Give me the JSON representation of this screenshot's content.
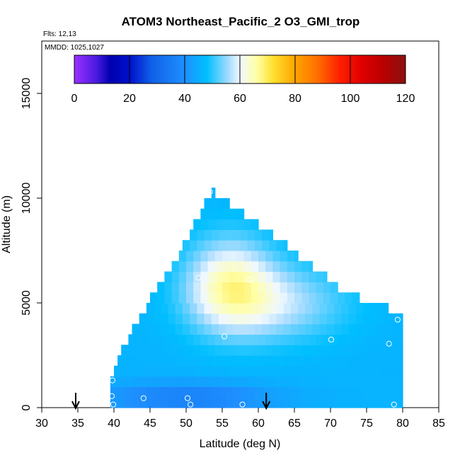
{
  "chart_data": {
    "type": "heatmap",
    "title": "ATOM3 Northeast_Pacific_2 O3_GMI_trop",
    "flts_label": "Flts: 12,13",
    "mmdd_label": "MMDD: 1025,1027",
    "xlabel": "Latitude (deg N)",
    "ylabel": "Altitude (m)",
    "xlim": [
      30,
      85
    ],
    "ylim": [
      0,
      17500
    ],
    "x_ticks": [
      30,
      35,
      40,
      45,
      50,
      55,
      60,
      65,
      70,
      75,
      80,
      85
    ],
    "y_ticks": [
      0,
      5000,
      10000,
      15000
    ],
    "colorbar": {
      "min": 0,
      "max": 120,
      "ticks": [
        0,
        20,
        40,
        60,
        80,
        100,
        120
      ],
      "stops": [
        {
          "v": 0,
          "c": "#9b30ff"
        },
        {
          "v": 8,
          "c": "#4a1ae0"
        },
        {
          "v": 13,
          "c": "#0000b0"
        },
        {
          "v": 20,
          "c": "#0010c8"
        },
        {
          "v": 28,
          "c": "#1060e8"
        },
        {
          "v": 40,
          "c": "#1e90ff"
        },
        {
          "v": 48,
          "c": "#00bfff"
        },
        {
          "v": 56,
          "c": "#a8dcff"
        },
        {
          "v": 60,
          "c": "#f0f8ff"
        },
        {
          "v": 66,
          "c": "#ffffa8"
        },
        {
          "v": 72,
          "c": "#ffe030"
        },
        {
          "v": 80,
          "c": "#ffa500"
        },
        {
          "v": 88,
          "c": "#ff7000"
        },
        {
          "v": 96,
          "c": "#ff2000"
        },
        {
          "v": 104,
          "c": "#e00000"
        },
        {
          "v": 112,
          "c": "#b80000"
        },
        {
          "v": 120,
          "c": "#8b1010"
        }
      ]
    },
    "field_region": {
      "lat_range": [
        39.5,
        80
      ],
      "alt_range": [
        0,
        10400
      ],
      "boundary_left": [
        [
          39.5,
          0
        ],
        [
          39.5,
          1400
        ],
        [
          42.5,
          3800
        ],
        [
          48.5,
          7000
        ],
        [
          53.5,
          10400
        ]
      ],
      "boundary_right": [
        [
          53.5,
          10400
        ],
        [
          63,
          8000
        ],
        [
          72,
          5500
        ],
        [
          80,
          4500
        ],
        [
          80,
          0
        ]
      ],
      "alt_step": 500,
      "lat_step": 1,
      "centers": [
        {
          "lat": 56,
          "alt": 6000,
          "value": 62,
          "r_lat": 6,
          "r_alt": 2200
        },
        {
          "lat": 62,
          "alt": 5000,
          "value": 57,
          "r_lat": 10,
          "r_alt": 1800
        },
        {
          "lat": 50,
          "alt": 500,
          "value": 36,
          "r_lat": 12,
          "r_alt": 700
        }
      ],
      "background_value": 46
    },
    "flight_points": [
      {
        "lat": 53.3,
        "alt": 10300
      },
      {
        "lat": 51.7,
        "alt": 6200
      },
      {
        "lat": 58.8,
        "alt": 6100
      },
      {
        "lat": 55.3,
        "alt": 3400
      },
      {
        "lat": 70.1,
        "alt": 3250
      },
      {
        "lat": 78.1,
        "alt": 3050
      },
      {
        "lat": 79.3,
        "alt": 4200
      },
      {
        "lat": 39.8,
        "alt": 1300
      },
      {
        "lat": 39.7,
        "alt": 550
      },
      {
        "lat": 39.9,
        "alt": 150
      },
      {
        "lat": 44.1,
        "alt": 450
      },
      {
        "lat": 50.2,
        "alt": 450
      },
      {
        "lat": 50.6,
        "alt": 150
      },
      {
        "lat": 57.8,
        "alt": 150
      },
      {
        "lat": 78.8,
        "alt": 150
      }
    ],
    "arrows_lat": [
      34.7,
      61.1
    ]
  }
}
